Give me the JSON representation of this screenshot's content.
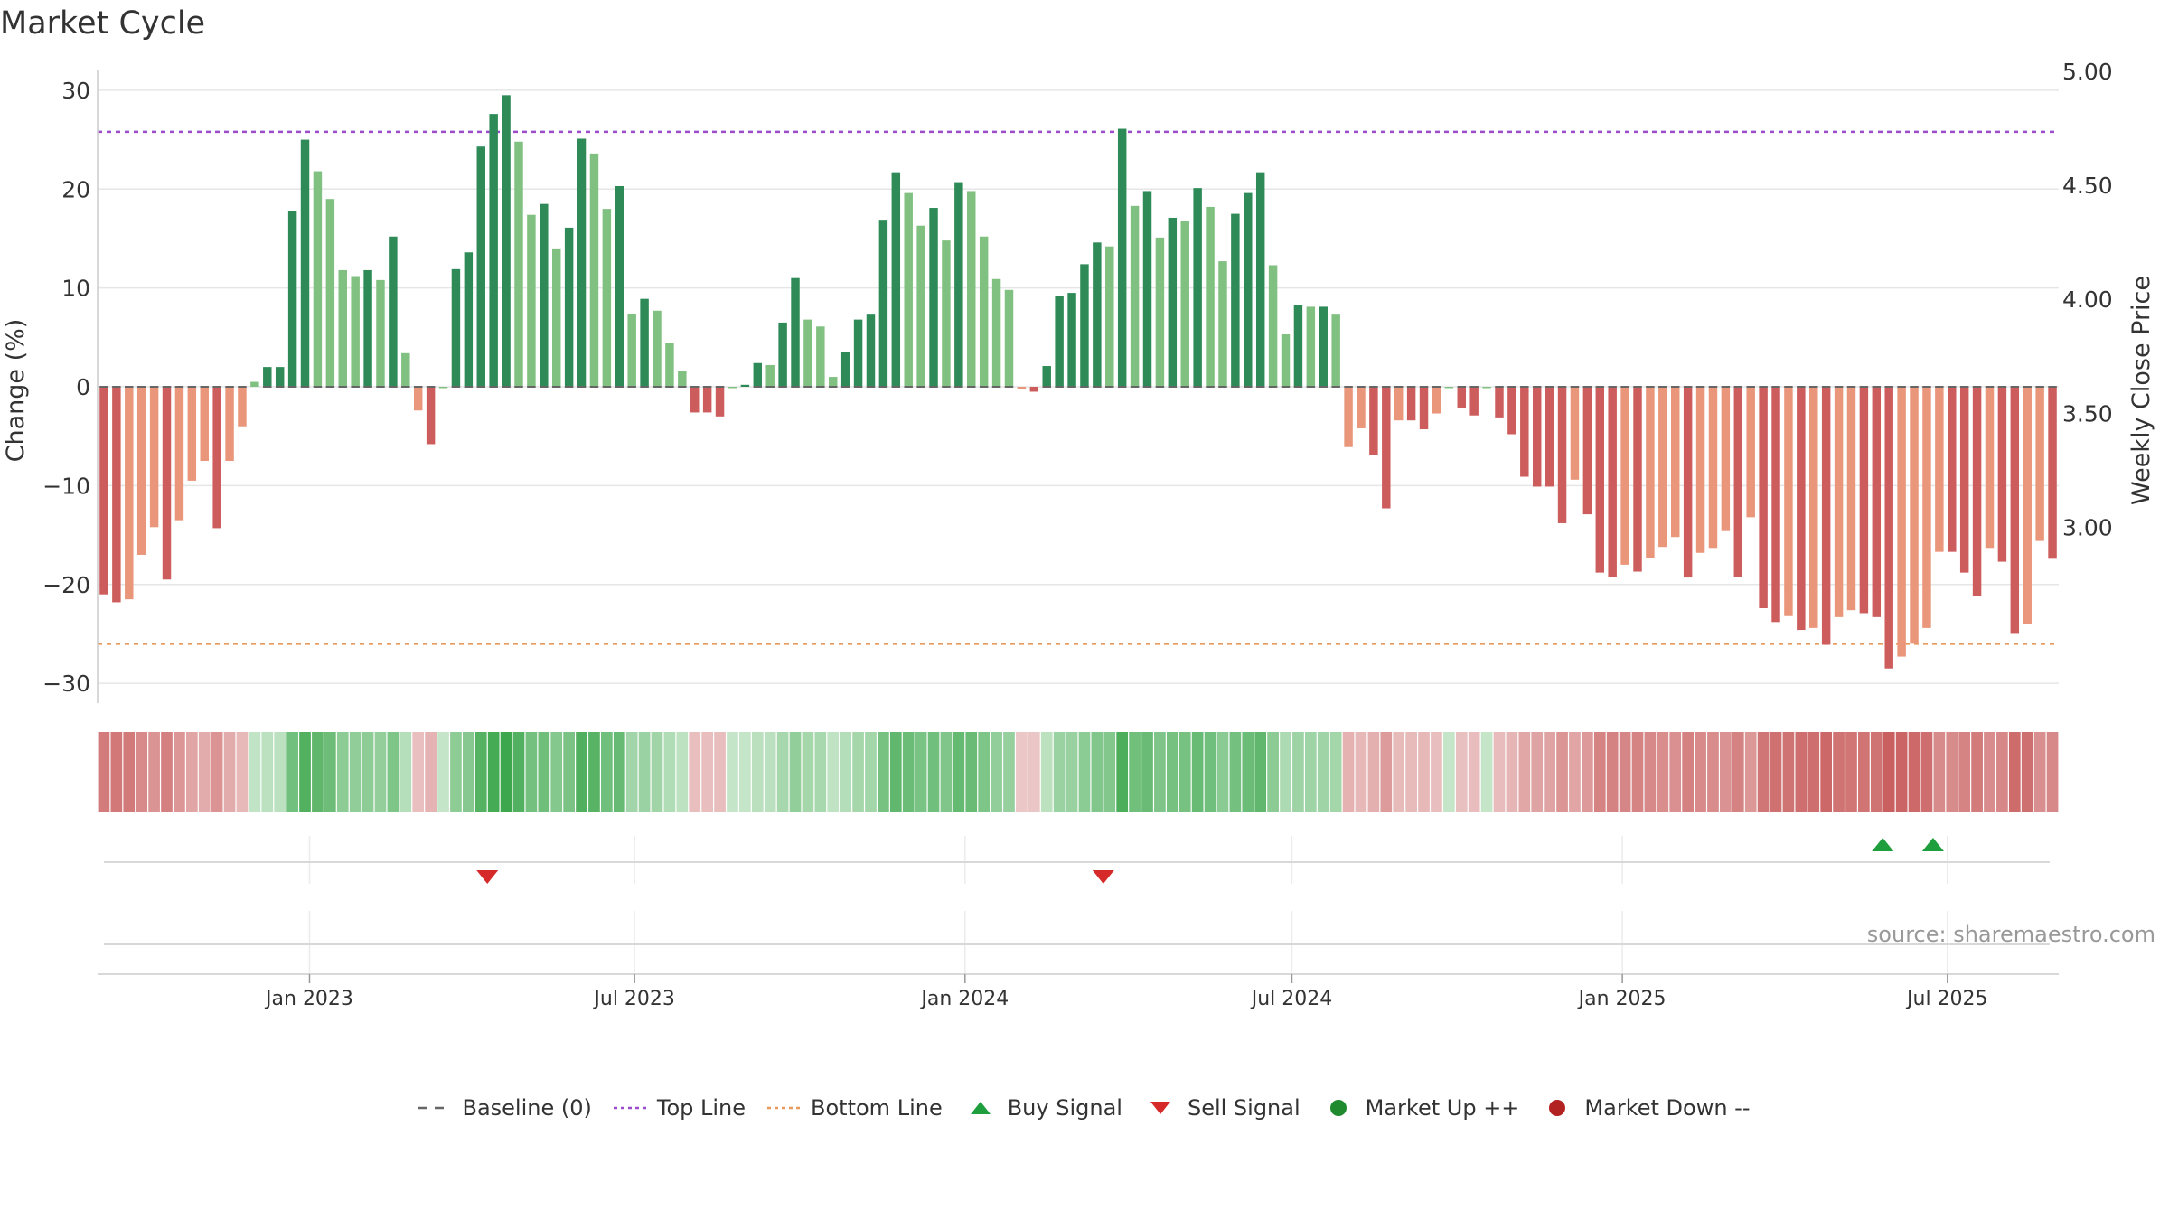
{
  "title": "Market Cycle",
  "source": "source: sharemaestro.com",
  "chart_data": {
    "type": "bar",
    "title": "Market Cycle",
    "ylabel_left": "Change (%)",
    "ylabel_right": "Weekly Close Price",
    "ylim_left": [
      -32,
      32
    ],
    "ylim_right": [
      2.7,
      5.0
    ],
    "yticks_left": [
      "30",
      "20",
      "10",
      "0",
      "−10",
      "−20",
      "−30"
    ],
    "yticks_left_values": [
      30,
      20,
      10,
      0,
      -10,
      -20,
      -30
    ],
    "yticks_right": [
      "5.00",
      "4.50",
      "4.00",
      "3.50",
      "3.00"
    ],
    "yticks_right_values": [
      5.0,
      4.5,
      4.0,
      3.5,
      3.0
    ],
    "x_start": "2022-09-05",
    "x_end": "2025-09-01",
    "bar_interval_days": 7,
    "xticks": [
      {
        "label": "Jan 2023",
        "date": "2023-01-01"
      },
      {
        "label": "Jul 2023",
        "date": "2023-07-01"
      },
      {
        "label": "Jan 2024",
        "date": "2024-01-01"
      },
      {
        "label": "Jul 2024",
        "date": "2024-07-01"
      },
      {
        "label": "Jan 2025",
        "date": "2025-01-01"
      },
      {
        "label": "Jul 2025",
        "date": "2025-07-01"
      }
    ],
    "top_line": 25.8,
    "bottom_line": -26,
    "baseline": 0,
    "values": [
      -21,
      -21.8,
      -21.5,
      -17,
      -14.2,
      -19.5,
      -13.5,
      -9.5,
      -7.5,
      -14.3,
      -7.5,
      -4,
      0.5,
      2,
      2,
      17.8,
      25,
      21.8,
      19,
      11.8,
      11.2,
      11.8,
      10.8,
      15.2,
      3.4,
      -2.4,
      -5.8,
      0,
      11.9,
      13.6,
      24.3,
      27.6,
      29.5,
      24.8,
      17.4,
      18.5,
      14,
      16.1,
      25.1,
      23.6,
      18,
      20.3,
      7.4,
      8.9,
      7.7,
      4.4,
      1.6,
      -2.6,
      -2.6,
      -3,
      0,
      0.2,
      2.4,
      2.2,
      6.5,
      11,
      6.8,
      6.1,
      1,
      3.5,
      6.8,
      7.3,
      16.9,
      21.7,
      19.6,
      16.3,
      18.1,
      14.8,
      20.7,
      19.8,
      15.2,
      10.9,
      9.8,
      -0.2,
      -0.5,
      2.1,
      9.2,
      9.5,
      12.4,
      14.6,
      14.2,
      26.1,
      18.3,
      19.8,
      15.1,
      17.1,
      16.8,
      20.1,
      18.2,
      12.7,
      17.5,
      19.6,
      21.7,
      12.3,
      5.3,
      8.3,
      8.1,
      8.1,
      7.3,
      -6.1,
      -4.2,
      -6.9,
      -12.3,
      -3.4,
      -3.4,
      -4.3,
      -2.7,
      0,
      -2.1,
      -2.9,
      0,
      -3.1,
      -4.8,
      -9.1,
      -10.1,
      -10.1,
      -13.8,
      -9.4,
      -12.9,
      -18.8,
      -19.2,
      -18,
      -18.7,
      -17.3,
      -16.2,
      -15.2,
      -19.3,
      -16.8,
      -16.3,
      -14.6,
      -19.2,
      -13.2,
      -22.4,
      -23.8,
      -23.2,
      -24.6,
      -24.4,
      -26.1,
      -23.3,
      -22.6,
      -22.9,
      -23.3,
      -28.5,
      -27.3,
      -26,
      -24.4,
      -16.7,
      -16.7,
      -18.8,
      -21.2,
      -16.3,
      -17.7,
      -25,
      -24,
      -15.6,
      -17.4
    ],
    "signals": {
      "buy_signal_dates": [
        "2025-05-26",
        "2025-06-23"
      ],
      "sell_signal_dates": [
        "2023-04-10",
        "2024-03-18"
      ]
    },
    "legend": [
      {
        "name": "Baseline (0)",
        "symbol": "dash",
        "color": "#666666"
      },
      {
        "name": "Top Line",
        "symbol": "dotted",
        "color": "#9b4dca"
      },
      {
        "name": "Bottom Line",
        "symbol": "dotted",
        "color": "#e89a5a"
      },
      {
        "name": "Buy Signal",
        "symbol": "triangle-up",
        "color": "#1e9e3c"
      },
      {
        "name": "Sell Signal",
        "symbol": "triangle-down",
        "color": "#d62a2a"
      },
      {
        "name": "Market Up ++",
        "symbol": "circle",
        "color": "#1f8a2e"
      },
      {
        "name": "Market Down --",
        "symbol": "circle",
        "color": "#b22222"
      }
    ],
    "colors": {
      "pos_strong": "#2e8b57",
      "pos_light": "#80c080",
      "neg_strong": "#cd5c5c",
      "neg_light": "#e9967a",
      "top_line": "#9b4dca",
      "bottom_line": "#e89a5a",
      "buy": "#1e9e3c",
      "sell": "#d62a2a",
      "grid": "#e6e6e6",
      "axis": "#cccccc"
    }
  }
}
